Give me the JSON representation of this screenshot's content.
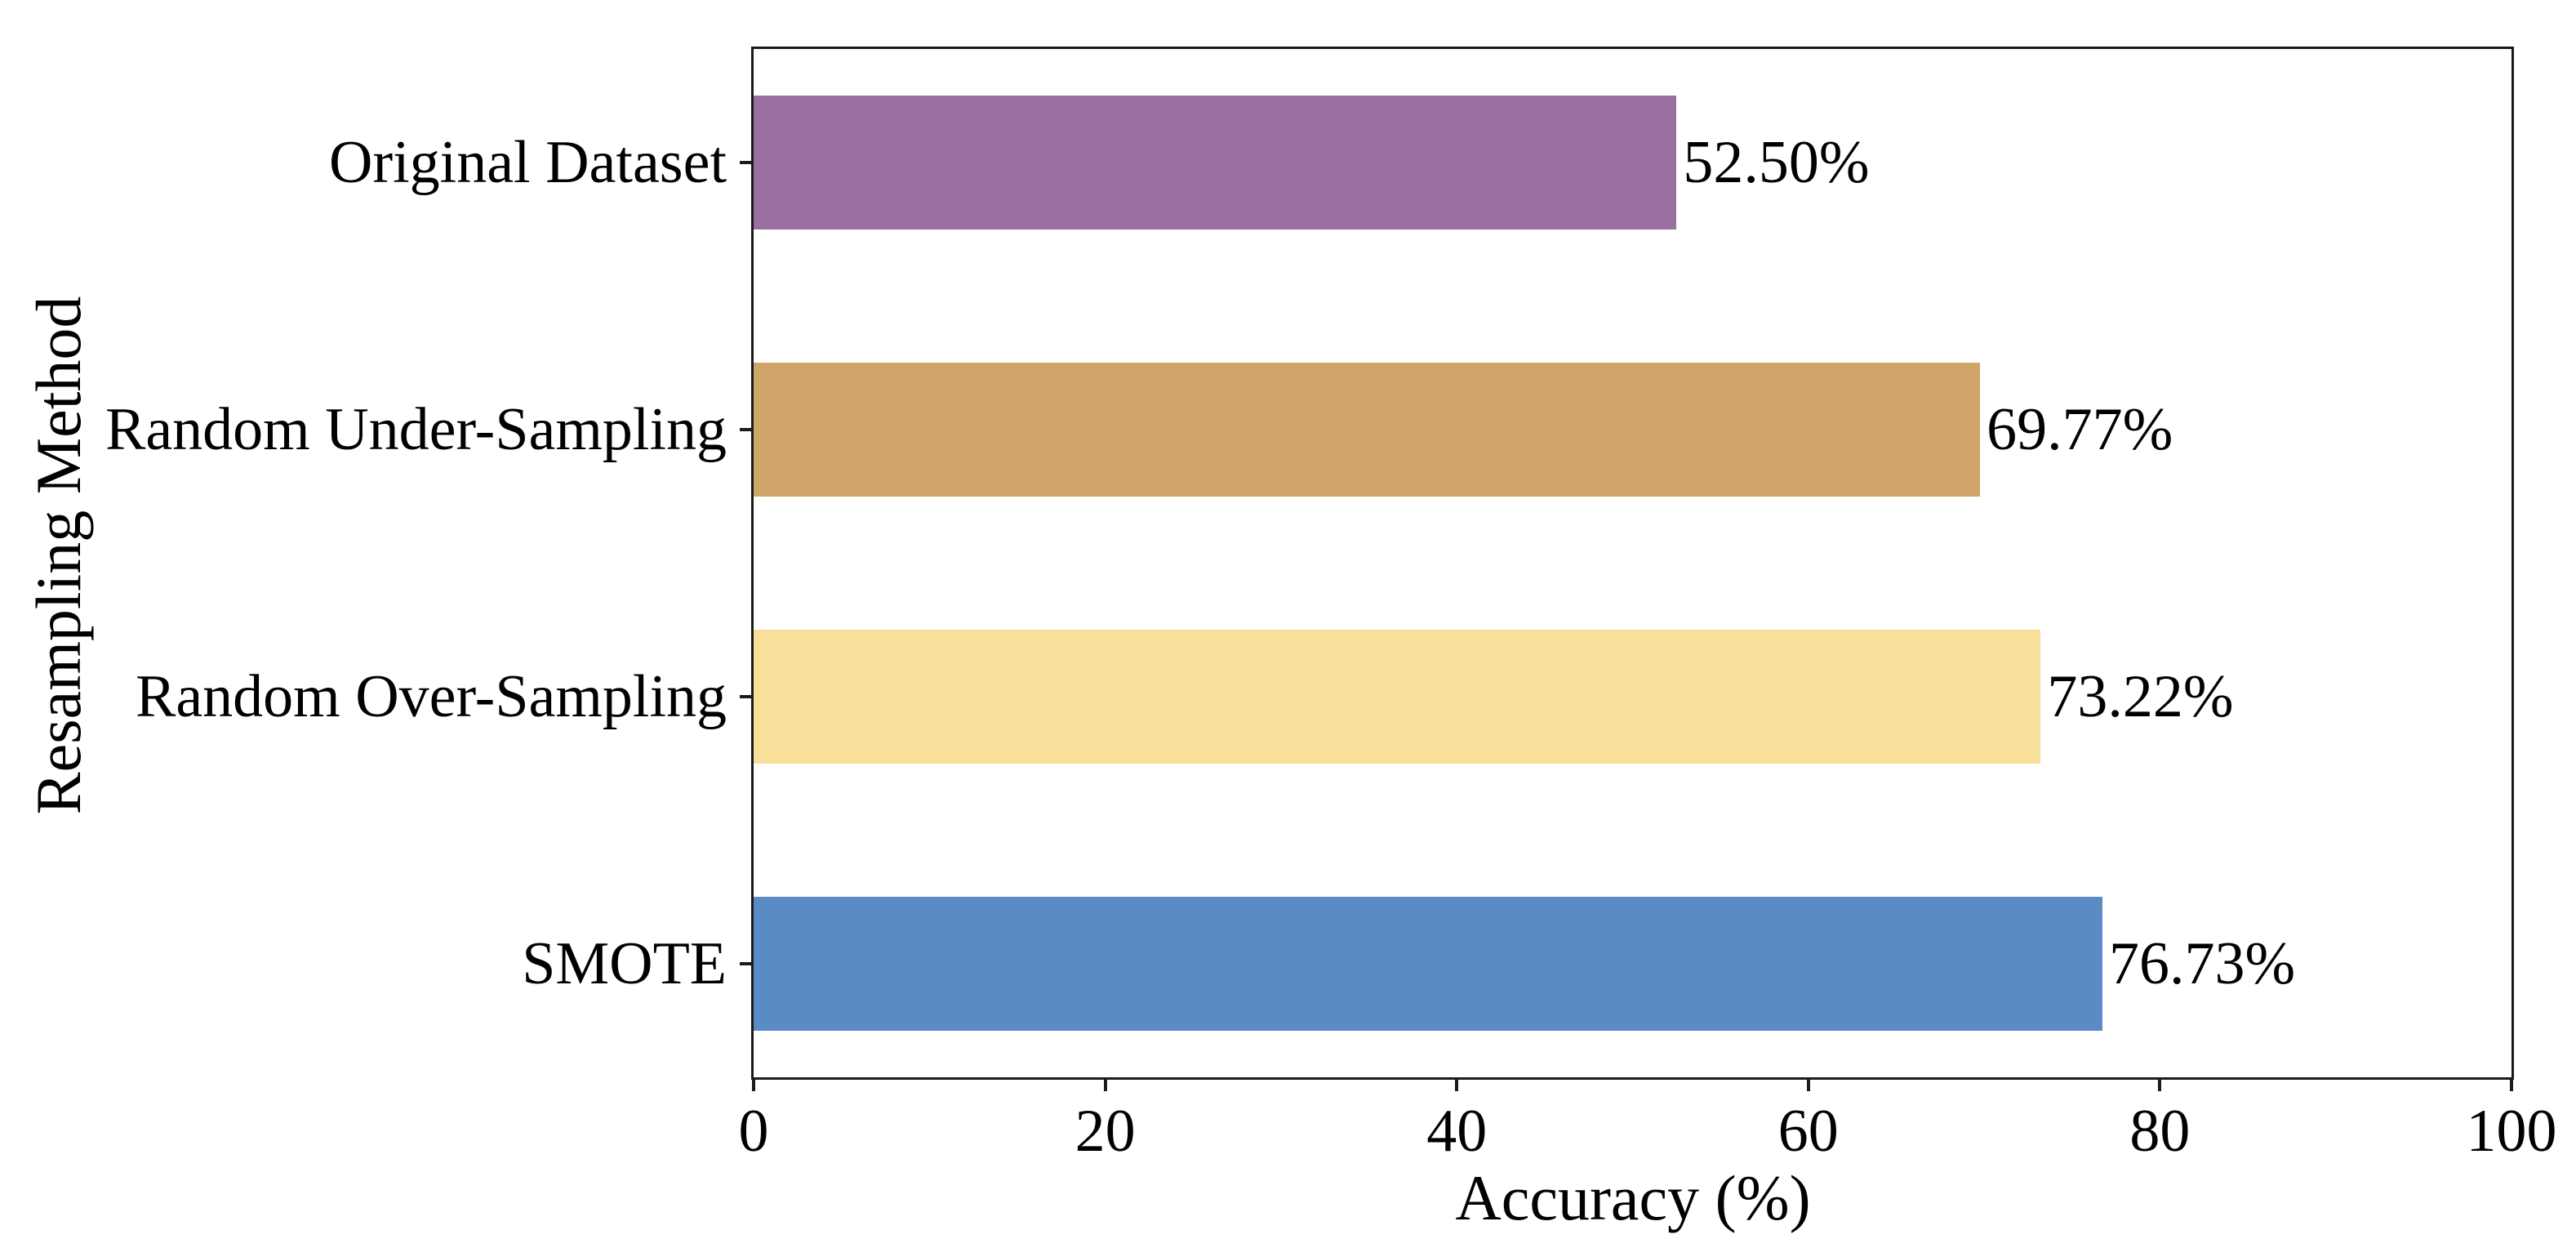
{
  "figure": {
    "background_color": "#ffffff",
    "frame_color": "#1b1b1b",
    "text_color": "#000000"
  },
  "chart_data": {
    "type": "bar",
    "orientation": "horizontal",
    "title": "",
    "xlabel": "Accuracy (%)",
    "ylabel": "Resampling Method",
    "categories": [
      "Original Dataset",
      "Random Under-Sampling",
      "Random Over-Sampling",
      "SMOTE"
    ],
    "series": [
      {
        "name": "Accuracy",
        "values": [
          52.5,
          69.77,
          73.22,
          76.73
        ],
        "value_labels": [
          "52.50%",
          "69.77%",
          "73.22%",
          "76.73%"
        ],
        "colors": [
          "#9970A1",
          "#D0A569",
          "#F8DF9A",
          "#5A8BC5"
        ]
      }
    ],
    "xlim": [
      0,
      100
    ],
    "x_ticks": [
      "0",
      "20",
      "40",
      "60",
      "80",
      "100"
    ],
    "x_tick_values": [
      0,
      20,
      40,
      60,
      80,
      100
    ],
    "grid": false,
    "legend": null,
    "bar_relative_height": 0.5,
    "outer_margin_units": 0.425
  }
}
